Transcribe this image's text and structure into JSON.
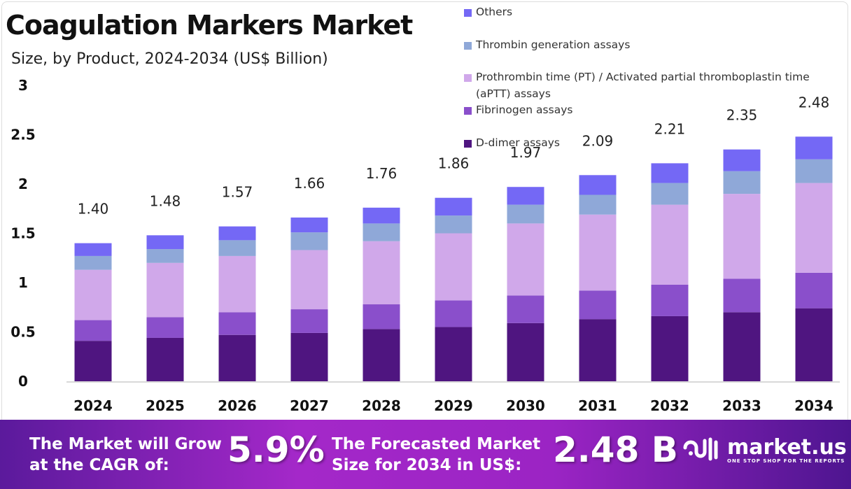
{
  "chart_data": {
    "type": "bar",
    "stacked": true,
    "title": "Coagulation Markers Market",
    "subtitle": "Size, by Product, 2024-2034 (US$ Billion)",
    "xlabel": "",
    "ylabel": "",
    "ylim": [
      0,
      3
    ],
    "yticks": [
      "0",
      "0.5",
      "1",
      "1.5",
      "2",
      "2.5",
      "3"
    ],
    "grid": false,
    "legend_position": "top-right",
    "categories": [
      "2024",
      "2025",
      "2026",
      "2027",
      "2028",
      "2029",
      "2030",
      "2031",
      "2032",
      "2033",
      "2034"
    ],
    "totals": [
      "1.40",
      "1.48",
      "1.57",
      "1.66",
      "1.76",
      "1.86",
      "1.97",
      "2.09",
      "2.21",
      "2.35",
      "2.48"
    ],
    "series": [
      {
        "name": "D-dimer assays",
        "color": "#4f1580",
        "values": [
          0.41,
          0.44,
          0.47,
          0.49,
          0.53,
          0.55,
          0.59,
          0.63,
          0.66,
          0.7,
          0.74
        ]
      },
      {
        "name": "Fibrinogen assays",
        "color": "#8a4fcb",
        "values": [
          0.21,
          0.21,
          0.23,
          0.24,
          0.25,
          0.27,
          0.28,
          0.29,
          0.32,
          0.34,
          0.36
        ]
      },
      {
        "name": "Prothrombin time (PT) / Activated partial thromboplastin time (aPTT) assays",
        "color": "#d0a8ea",
        "values": [
          0.51,
          0.55,
          0.57,
          0.6,
          0.64,
          0.68,
          0.73,
          0.77,
          0.81,
          0.86,
          0.91
        ]
      },
      {
        "name": "Thrombin generation assays",
        "color": "#8fa8d8",
        "values": [
          0.14,
          0.14,
          0.16,
          0.18,
          0.18,
          0.18,
          0.19,
          0.2,
          0.22,
          0.23,
          0.24
        ]
      },
      {
        "name": "Others",
        "color": "#7468f5",
        "values": [
          0.13,
          0.14,
          0.14,
          0.15,
          0.16,
          0.18,
          0.18,
          0.2,
          0.2,
          0.22,
          0.23
        ]
      }
    ]
  },
  "legend": {
    "others": "Others",
    "thrombin": "Thrombin generation assays",
    "pt_line1": "Prothrombin time (PT) / Activated partial thromboplastin time",
    "pt_line2": "(aPTT) assays",
    "fibrinogen": "Fibrinogen assays",
    "ddimer": "D-dimer assays"
  },
  "footer": {
    "cagr_label_1": "The Market will Grow",
    "cagr_label_2": "at the CAGR of:",
    "cagr_value": "5.9%",
    "forecast_label_1": "The Forecasted Market",
    "forecast_label_2": "Size for 2034 in US$:",
    "forecast_value": "2.48 B",
    "brand": "market.us",
    "brand_tagline": "ONE STOP SHOP FOR THE REPORTS"
  }
}
